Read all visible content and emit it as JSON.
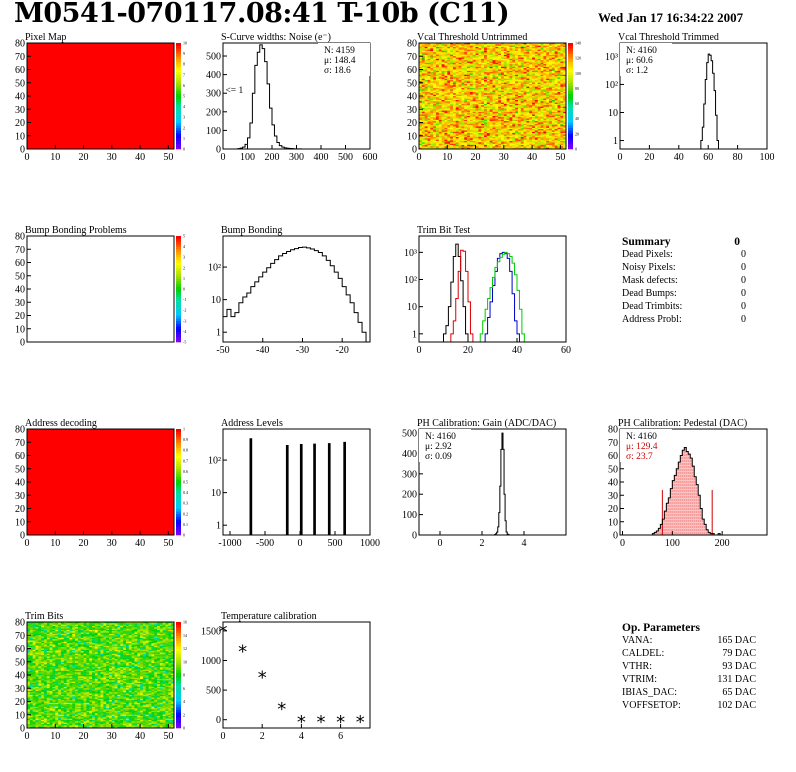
{
  "header": {
    "title": "M0541-070117.08:41 T-10b (C11)",
    "date": "Wed Jan 17 16:34:22 2007"
  },
  "summary": {
    "title": "Summary",
    "total": "0",
    "rows": [
      {
        "label": "Dead Pixels:",
        "value": "0"
      },
      {
        "label": "Noisy Pixels:",
        "value": "0"
      },
      {
        "label": "Mask defects:",
        "value": "0"
      },
      {
        "label": "Dead Bumps:",
        "value": "0"
      },
      {
        "label": "Dead Trimbits:",
        "value": "0"
      },
      {
        "label": "Address Probl:",
        "value": "0"
      }
    ]
  },
  "op_parameters": {
    "title": "Op. Parameters",
    "rows": [
      {
        "label": "VANA:",
        "value": "165 DAC"
      },
      {
        "label": "CALDEL:",
        "value": "79 DAC"
      },
      {
        "label": "VTHR:",
        "value": "93 DAC"
      },
      {
        "label": "VTRIM:",
        "value": "131 DAC"
      },
      {
        "label": "IBIAS_DAC:",
        "value": "65 DAC"
      },
      {
        "label": "VOFFSETOP:",
        "value": "102 DAC"
      }
    ]
  },
  "chart_data": [
    {
      "id": "pixel_map",
      "type": "heatmap",
      "title": "Pixel Map",
      "xlim": [
        0,
        52
      ],
      "ylim": [
        0,
        80
      ],
      "xticks": [
        0,
        10,
        20,
        30,
        40,
        50
      ],
      "yticks": [
        0,
        10,
        20,
        30,
        40,
        50,
        60,
        70,
        80
      ],
      "fill": "uniform",
      "uniform_color": "#ff0000",
      "zlim": [
        0,
        10
      ],
      "zticks": [
        0,
        1,
        2,
        3,
        4,
        5,
        6,
        7,
        8,
        9,
        10
      ]
    },
    {
      "id": "scurve_widths",
      "type": "histogram",
      "title": "S-Curve widths: Noise (e⁻)",
      "xlim": [
        0,
        600
      ],
      "ylim": [
        0,
        570
      ],
      "xticks": [
        0,
        100,
        200,
        300,
        400,
        500,
        600
      ],
      "yticks": [
        0,
        100,
        200,
        300,
        400,
        500
      ],
      "stats": [
        "N: 4159",
        "μ: 148.4",
        "σ: 18.6"
      ],
      "annotation": {
        "text": "<= 1",
        "x": 10,
        "y": 300
      },
      "bins": {
        "start": 60,
        "width": 10,
        "values": [
          2,
          5,
          10,
          25,
          60,
          140,
          300,
          450,
          520,
          560,
          540,
          470,
          350,
          220,
          130,
          70,
          35,
          18,
          10,
          6,
          4,
          3,
          2,
          1,
          1,
          1,
          0,
          0,
          0,
          0
        ]
      }
    },
    {
      "id": "vcal_untrimmed",
      "type": "heatmap",
      "title": "Vcal Threshold Untrimmed",
      "xlim": [
        0,
        52
      ],
      "ylim": [
        0,
        80
      ],
      "xticks": [
        0,
        10,
        20,
        30,
        40,
        50
      ],
      "yticks": [
        0,
        10,
        20,
        30,
        40,
        50,
        60,
        70,
        80
      ],
      "fill": "noise",
      "noise_center": 110,
      "noise_spread": 18,
      "zlim": [
        0,
        140
      ],
      "zticks": [
        0,
        20,
        40,
        60,
        80,
        100,
        120,
        140
      ]
    },
    {
      "id": "vcal_trimmed",
      "type": "histogram",
      "title": "Vcal Threshold Trimmed",
      "log_y": true,
      "xlim": [
        0,
        100
      ],
      "ylim": [
        0.5,
        3000
      ],
      "xticks": [
        0,
        20,
        40,
        60,
        80,
        100
      ],
      "yticks": [
        1,
        10,
        100,
        1000
      ],
      "stats": [
        "N: 4160",
        "μ: 60.6",
        "σ:  1.2"
      ],
      "bins": {
        "start": 55,
        "width": 1,
        "values": [
          1,
          3,
          20,
          150,
          600,
          1200,
          1100,
          700,
          250,
          60,
          8,
          1
        ]
      }
    },
    {
      "id": "bump_problems",
      "type": "heatmap",
      "title": "Bump Bonding Problems",
      "xlim": [
        0,
        52
      ],
      "ylim": [
        0,
        80
      ],
      "xticks": [],
      "yticks": [
        0,
        10,
        20,
        30,
        40,
        50,
        60,
        70,
        80
      ],
      "fill": "empty",
      "zlim": [
        -5,
        5
      ],
      "zticks": [
        -5,
        -4,
        -3,
        -2,
        -1,
        0,
        1,
        2,
        3,
        4,
        5
      ]
    },
    {
      "id": "bump_bonding",
      "type": "histogram",
      "title": "Bump Bonding",
      "log_y": true,
      "xlim": [
        -50,
        -13
      ],
      "ylim": [
        0.5,
        900
      ],
      "xticks": [
        -50,
        -40,
        -30,
        -20
      ],
      "yticks": [
        1,
        10,
        100
      ],
      "bins": {
        "start": -50,
        "width": 1,
        "values": [
          3,
          5,
          3,
          4,
          8,
          12,
          16,
          25,
          35,
          50,
          70,
          95,
          130,
          170,
          220,
          260,
          300,
          340,
          370,
          400,
          410,
          390,
          360,
          320,
          280,
          220,
          160,
          110,
          70,
          45,
          25,
          14,
          8,
          4,
          2,
          1
        ]
      }
    },
    {
      "id": "trim_bit_test",
      "type": "histogram_multi",
      "title": "Trim Bit Test",
      "log_y": true,
      "xlim": [
        0,
        60
      ],
      "ylim": [
        0.5,
        4000
      ],
      "xticks": [
        0,
        20,
        40,
        60
      ],
      "yticks": [
        1,
        10,
        100,
        1000
      ],
      "series": [
        {
          "color": "#000000",
          "start": 10,
          "width": 1,
          "values": [
            1,
            2,
            10,
            80,
            700,
            2000,
            700,
            90,
            10,
            1
          ]
        },
        {
          "color": "#dd0000",
          "start": 13,
          "width": 1,
          "values": [
            1,
            3,
            20,
            200,
            1200,
            1100,
            200,
            15,
            1
          ]
        },
        {
          "color": "#0000cc",
          "start": 27,
          "width": 1,
          "values": [
            1,
            4,
            15,
            60,
            200,
            600,
            900,
            1000,
            900,
            600,
            200,
            30,
            3,
            1
          ]
        },
        {
          "color": "#00cc00",
          "start": 25,
          "width": 1,
          "values": [
            1,
            3,
            8,
            20,
            50,
            120,
            280,
            450,
            650,
            850,
            1000,
            900,
            700,
            400,
            150,
            40,
            8,
            1
          ]
        }
      ]
    },
    {
      "id": "address_decoding",
      "type": "heatmap",
      "title": "Address decoding",
      "xlim": [
        0,
        52
      ],
      "ylim": [
        0,
        80
      ],
      "xticks": [
        0,
        10,
        20,
        30,
        40,
        50
      ],
      "yticks": [
        0,
        10,
        20,
        30,
        40,
        50,
        60,
        70,
        80
      ],
      "fill": "uniform",
      "uniform_color": "#ff0000",
      "zlim": [
        0,
        1
      ],
      "zticks": [
        0,
        0.1,
        0.2,
        0.3,
        0.4,
        0.5,
        0.6,
        0.7,
        0.8,
        0.9,
        1
      ]
    },
    {
      "id": "address_levels",
      "type": "spikes",
      "title": "Address Levels",
      "log_y": true,
      "xlim": [
        -1100,
        1000
      ],
      "ylim": [
        0.5,
        900
      ],
      "xticks": [
        -1000,
        -500,
        0,
        500,
        1000
      ],
      "yticks": [
        1,
        10,
        100
      ],
      "peaks": [
        {
          "x": -700,
          "height": 450
        },
        {
          "x": -180,
          "height": 280
        },
        {
          "x": 20,
          "height": 300
        },
        {
          "x": 210,
          "height": 310
        },
        {
          "x": 420,
          "height": 320
        },
        {
          "x": 640,
          "height": 350
        }
      ]
    },
    {
      "id": "ph_gain",
      "type": "histogram",
      "title": "PH Calibration: Gain (ADC/DAC)",
      "xlim": [
        -1,
        6
      ],
      "ylim": [
        0,
        520
      ],
      "xticks": [
        0,
        2,
        4
      ],
      "yticks": [
        0,
        100,
        200,
        300,
        400,
        500
      ],
      "stats": [
        "N: 4160",
        "μ: 2.92",
        "σ: 0.09"
      ],
      "bins": {
        "start": 2.6,
        "width": 0.05,
        "values": [
          2,
          6,
          14,
          40,
          110,
          240,
          420,
          500,
          420,
          200,
          70,
          15,
          4,
          1
        ]
      }
    },
    {
      "id": "ph_pedestal",
      "type": "histogram",
      "title": "PH Calibration: Pedestal (DAC)",
      "xlim": [
        -5,
        290
      ],
      "ylim": [
        0,
        80
      ],
      "xticks": [
        0,
        100,
        200
      ],
      "yticks": [
        0,
        10,
        20,
        30,
        40,
        50,
        60,
        70,
        80
      ],
      "stats": [
        "N: 4160"
      ],
      "stats_red": [
        "μ: 129.4",
        "σ: 23.7"
      ],
      "fit_lines": [
        80,
        180
      ],
      "bins": {
        "start": 60,
        "width": 4,
        "values": [
          1,
          2,
          3,
          5,
          8,
          12,
          18,
          24,
          28,
          35,
          41,
          45,
          50,
          55,
          60,
          64,
          66,
          63,
          61,
          58,
          52,
          44,
          38,
          30,
          20,
          12,
          8,
          4,
          2,
          1,
          1,
          0,
          0,
          1,
          0,
          0
        ]
      }
    },
    {
      "id": "trim_bits",
      "type": "heatmap",
      "title": "Trim Bits",
      "xlim": [
        0,
        52
      ],
      "ylim": [
        0,
        80
      ],
      "xticks": [
        0,
        10,
        20,
        30,
        40,
        50
      ],
      "yticks": [
        0,
        10,
        20,
        30,
        40,
        50,
        60,
        70,
        80
      ],
      "fill": "noise",
      "noise_center": 9,
      "noise_spread": 1.6,
      "zlim": [
        0,
        16
      ],
      "zticks": [
        0,
        2,
        4,
        6,
        8,
        10,
        12,
        14,
        16
      ]
    },
    {
      "id": "temperature_calibration",
      "type": "scatter",
      "title": "Temperature calibration",
      "xlim": [
        0,
        7.5
      ],
      "ylim": [
        -140,
        1650
      ],
      "xticks": [
        0,
        2,
        4,
        6
      ],
      "yticks": [
        0,
        500,
        1000,
        1500
      ],
      "marker": "*",
      "x": [
        0,
        1,
        2,
        3,
        4,
        5,
        6,
        7
      ],
      "y": [
        1510,
        1170,
        730,
        200,
        -20,
        -20,
        -20,
        -20
      ]
    }
  ]
}
